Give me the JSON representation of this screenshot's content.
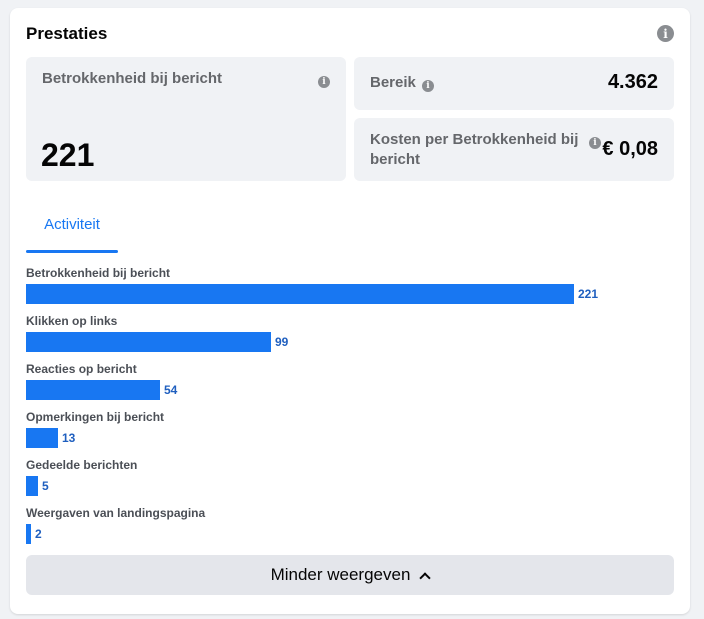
{
  "card": {
    "title": "Prestaties",
    "info_icon": "info-icon"
  },
  "metrics": {
    "engagement": {
      "label": "Betrokkenheid bij bericht",
      "value": "221"
    },
    "reach": {
      "label": "Bereik",
      "value": "4.362"
    },
    "cost": {
      "label": "Kosten per Betrokkenheid bij bericht",
      "value": "€ 0,08"
    }
  },
  "tabs": [
    {
      "label": "Activiteit",
      "active": true
    }
  ],
  "chart_data": {
    "type": "bar",
    "orientation": "horizontal",
    "categories": [
      "Betrokkenheid bij bericht",
      "Klikken op links",
      "Reacties op bericht",
      "Opmerkingen bij bericht",
      "Gedeelde berichten",
      "Weergaven van landingspagina"
    ],
    "values": [
      221,
      99,
      54,
      13,
      5,
      2
    ],
    "color": "#1877f2"
  },
  "footer": {
    "toggle_label": "Minder weergeven",
    "toggle_icon": "chevron-up-icon"
  }
}
